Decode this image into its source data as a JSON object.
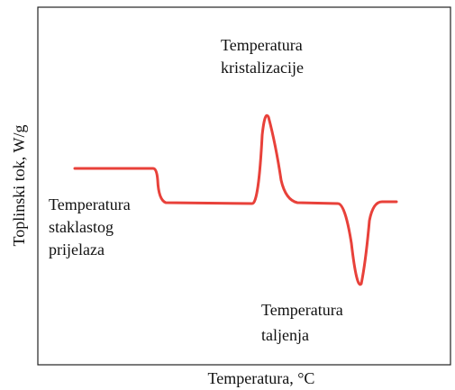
{
  "axes": {
    "x_label": "Temperatura, °C",
    "y_label": "Toplinski tok, W/g"
  },
  "annotations": [
    {
      "lines": [
        "Temperatura",
        "kristalizacije"
      ]
    },
    {
      "lines": [
        "Temperatura",
        "staklastog",
        "prijelaza"
      ]
    },
    {
      "lines": [
        "Temperatura",
        "taljenja"
      ]
    }
  ]
}
